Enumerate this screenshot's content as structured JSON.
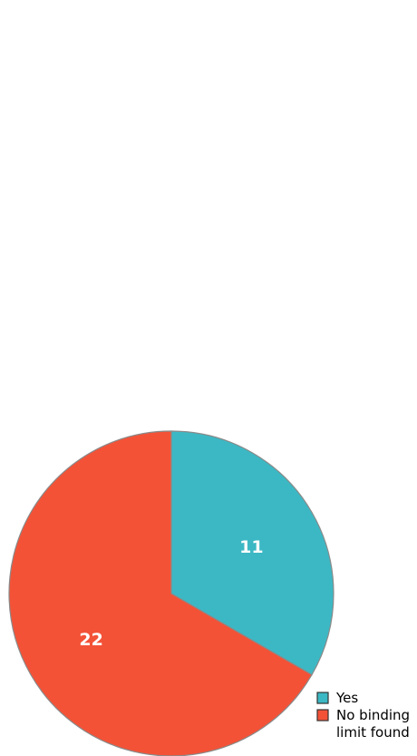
{
  "chart_data": {
    "type": "pie",
    "categories": [
      "Yes",
      "No binding limit found"
    ],
    "values": [
      11,
      22
    ],
    "colors": [
      "#3cb8c4",
      "#f35237"
    ],
    "slice_border_color": "#8a8a8a",
    "start": "12 o'clock",
    "direction": "clockwise",
    "legend": {
      "position": "bottom-right",
      "entries": [
        {
          "label": "Yes",
          "color": "#3cb8c4"
        },
        {
          "label": [
            "No binding",
            "limit found"
          ],
          "color": "#f35237"
        }
      ]
    }
  }
}
